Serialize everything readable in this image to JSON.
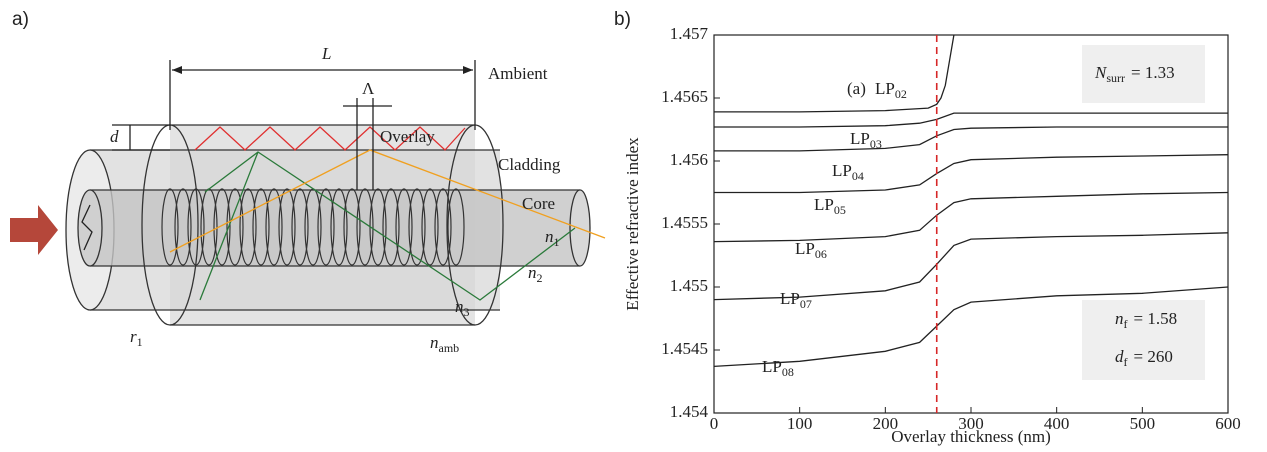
{
  "diagram": {
    "panel_label": "a)",
    "length_label": "L",
    "period_label": "Λ",
    "thickness_label": "d",
    "ambient_label": "Ambient",
    "overlay_label": "Overlay",
    "cladding_label": "Cladding",
    "core_label": "Core",
    "n1": {
      "text": "n",
      "sub": "1"
    },
    "n2": {
      "text": "n",
      "sub": "2"
    },
    "n3": {
      "text": "n",
      "sub": "3"
    },
    "r1": {
      "text": "r",
      "sub": "1"
    },
    "n_amb": {
      "text": "n",
      "sub": "amb"
    }
  },
  "chart_data": {
    "type": "line",
    "panel_label": "b)",
    "subplot_label": "(a)",
    "xlabel": "Overlay thickness (nm)",
    "ylabel": "Effective refractive index",
    "xlim": [
      0,
      600
    ],
    "ylim": [
      1.454,
      1.457
    ],
    "xticks": [
      0,
      100,
      200,
      300,
      400,
      500,
      600
    ],
    "yticks": [
      1.454,
      1.4545,
      1.455,
      1.4555,
      1.456,
      1.4565,
      1.457
    ],
    "series": [
      {
        "color": "#222222",
        "x": [
          0,
          100,
          200,
          250,
          260,
          265,
          270,
          275,
          280
        ],
        "values": [
          1.45639,
          1.45639,
          1.4564,
          1.45642,
          1.45645,
          1.4565,
          1.4566,
          1.4568,
          1.457
        ]
      },
      {
        "color": "#222222",
        "x": [
          0,
          100,
          200,
          240,
          260,
          280,
          300,
          400,
          500,
          600
        ],
        "values": [
          1.45627,
          1.45627,
          1.45628,
          1.4563,
          1.45633,
          1.45638,
          1.45638,
          1.45638,
          1.45638,
          1.45638
        ]
      },
      {
        "color": "#222222",
        "x": [
          0,
          100,
          200,
          240,
          260,
          280,
          300,
          400,
          500,
          600
        ],
        "values": [
          1.45608,
          1.45608,
          1.4561,
          1.45613,
          1.4562,
          1.45625,
          1.45626,
          1.45627,
          1.45627,
          1.45627
        ]
      },
      {
        "color": "#222222",
        "x": [
          0,
          100,
          200,
          240,
          260,
          280,
          300,
          400,
          500,
          600
        ],
        "values": [
          1.45575,
          1.45575,
          1.45577,
          1.45581,
          1.4559,
          1.45598,
          1.45601,
          1.45603,
          1.45604,
          1.45605
        ]
      },
      {
        "color": "#222222",
        "x": [
          0,
          100,
          200,
          240,
          260,
          280,
          300,
          400,
          500,
          600
        ],
        "values": [
          1.45536,
          1.45537,
          1.4554,
          1.45545,
          1.45557,
          1.45567,
          1.4557,
          1.45572,
          1.45574,
          1.45575
        ]
      },
      {
        "color": "#222222",
        "x": [
          0,
          100,
          200,
          240,
          260,
          280,
          300,
          400,
          500,
          600
        ],
        "values": [
          1.4549,
          1.45492,
          1.45497,
          1.45504,
          1.45518,
          1.45533,
          1.45538,
          1.4554,
          1.45541,
          1.45543
        ]
      },
      {
        "color": "#222222",
        "x": [
          0,
          100,
          200,
          240,
          260,
          280,
          300,
          400,
          500,
          600
        ],
        "values": [
          1.45437,
          1.45441,
          1.45449,
          1.45456,
          1.45469,
          1.45482,
          1.45488,
          1.45493,
          1.45495,
          1.455
        ]
      }
    ],
    "mode_labels": [
      {
        "text": "LP",
        "sub": "02"
      },
      {
        "text": "LP",
        "sub": "03"
      },
      {
        "text": "LP",
        "sub": "04"
      },
      {
        "text": "LP",
        "sub": "05"
      },
      {
        "text": "LP",
        "sub": "06"
      },
      {
        "text": "LP",
        "sub": "07"
      },
      {
        "text": "LP",
        "sub": "08"
      }
    ],
    "vline": {
      "x": 260,
      "color": "#d62728"
    },
    "n_surr": {
      "text": "N",
      "sub": "surr",
      "value": "= 1.33"
    },
    "n_f": {
      "text": "n",
      "sub": "f",
      "value": "= 1.58"
    },
    "d_f": {
      "text": "d",
      "sub": "f",
      "value": "= 260",
      "color": "#e03030"
    }
  }
}
